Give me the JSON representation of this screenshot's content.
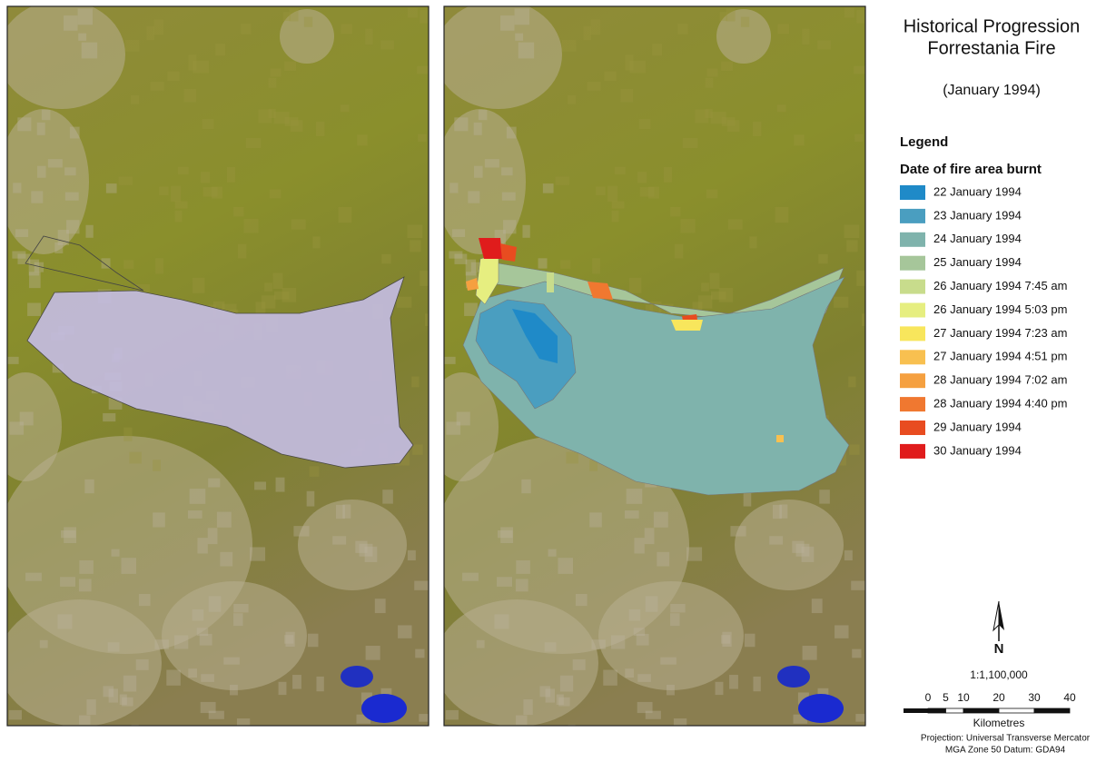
{
  "title": [
    "Historical Progression",
    "Forrestania Fire"
  ],
  "subtitle": "(January 1994)",
  "legend": {
    "heading": "Legend",
    "subheading": "Date of fire area burnt",
    "items": [
      {
        "label": "22 January 1994",
        "color": "#1f8ac8"
      },
      {
        "label": "23 January 1994",
        "color": "#4a9ec0"
      },
      {
        "label": "24 January 1994",
        "color": "#7fb3ac"
      },
      {
        "label": "25 January 1994",
        "color": "#a6c69a"
      },
      {
        "label": "26 January 1994 7:45 am",
        "color": "#c8dc8c"
      },
      {
        "label": "26 January 1994 5:03 pm",
        "color": "#e6ee80"
      },
      {
        "label": "27 January 1994 7:23 am",
        "color": "#f8e65c"
      },
      {
        "label": "27 January 1994 4:51 pm",
        "color": "#f8c050"
      },
      {
        "label": "28 January 1994 7:02 am",
        "color": "#f5a040"
      },
      {
        "label": "28 January 1994 4:40 pm",
        "color": "#f07830"
      },
      {
        "label": "29 January 1994",
        "color": "#e84c20"
      },
      {
        "label": "30 January 1994",
        "color": "#e01c1c"
      }
    ]
  },
  "north_arrow": {
    "label": "N"
  },
  "scale": {
    "ratio": "1:1,100,000",
    "ticks": [
      0,
      5,
      10,
      20,
      30,
      40
    ],
    "unit": "Kilometres"
  },
  "projection": [
    "Projection: Universal Transverse Mercator",
    "MGA Zone 50 Datum: GDA94"
  ]
}
